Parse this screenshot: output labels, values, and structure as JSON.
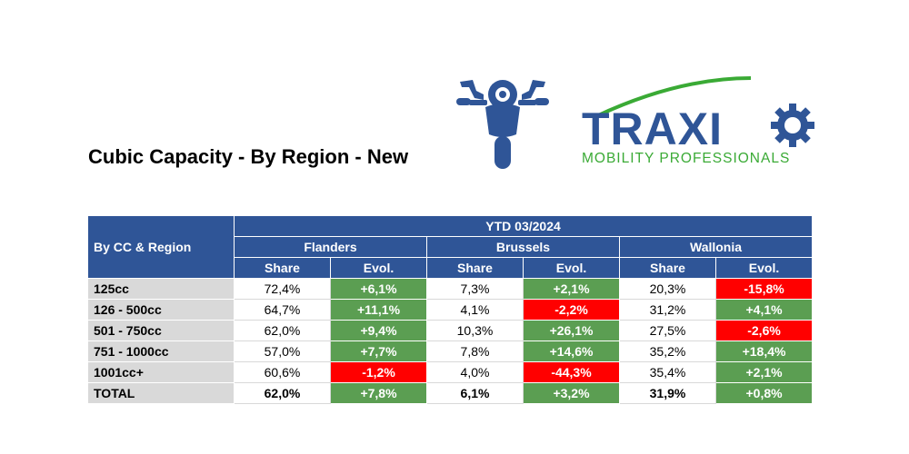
{
  "title": "Cubic Capacity - By Region - New",
  "logo": {
    "brand": "TRAXIO",
    "tagline": "MOBILITY PROFESSIONALS",
    "brand_color": "#2f5597",
    "accent_color": "#3aaa35"
  },
  "icon": "motorcycle-icon",
  "table": {
    "corner_label": "By CC & Region",
    "period": "YTD 03/2024",
    "regions": [
      "Flanders",
      "Brussels",
      "Wallonia"
    ],
    "subheaders": {
      "share": "Share",
      "evol": "Evol."
    },
    "rows": [
      {
        "label": "125cc",
        "cells": [
          {
            "share": "72,4%",
            "evol": "+6,1%",
            "sign": "pos"
          },
          {
            "share": "7,3%",
            "evol": "+2,1%",
            "sign": "pos"
          },
          {
            "share": "20,3%",
            "evol": "-15,8%",
            "sign": "neg"
          }
        ]
      },
      {
        "label": "126 - 500cc",
        "cells": [
          {
            "share": "64,7%",
            "evol": "+11,1%",
            "sign": "pos"
          },
          {
            "share": "4,1%",
            "evol": "-2,2%",
            "sign": "neg"
          },
          {
            "share": "31,2%",
            "evol": "+4,1%",
            "sign": "pos"
          }
        ]
      },
      {
        "label": "501 - 750cc",
        "cells": [
          {
            "share": "62,0%",
            "evol": "+9,4%",
            "sign": "pos"
          },
          {
            "share": "10,3%",
            "evol": "+26,1%",
            "sign": "pos"
          },
          {
            "share": "27,5%",
            "evol": "-2,6%",
            "sign": "neg"
          }
        ]
      },
      {
        "label": "751 - 1000cc",
        "cells": [
          {
            "share": "57,0%",
            "evol": "+7,7%",
            "sign": "pos"
          },
          {
            "share": "7,8%",
            "evol": "+14,6%",
            "sign": "pos"
          },
          {
            "share": "35,2%",
            "evol": "+18,4%",
            "sign": "pos"
          }
        ]
      },
      {
        "label": "1001cc+",
        "cells": [
          {
            "share": "60,6%",
            "evol": "-1,2%",
            "sign": "neg"
          },
          {
            "share": "4,0%",
            "evol": "-44,3%",
            "sign": "neg"
          },
          {
            "share": "35,4%",
            "evol": "+2,1%",
            "sign": "pos"
          }
        ]
      },
      {
        "label": "TOTAL",
        "total": true,
        "cells": [
          {
            "share": "62,0%",
            "evol": "+7,8%",
            "sign": "pos"
          },
          {
            "share": "6,1%",
            "evol": "+3,2%",
            "sign": "pos"
          },
          {
            "share": "31,9%",
            "evol": "+0,8%",
            "sign": "pos"
          }
        ]
      }
    ]
  }
}
